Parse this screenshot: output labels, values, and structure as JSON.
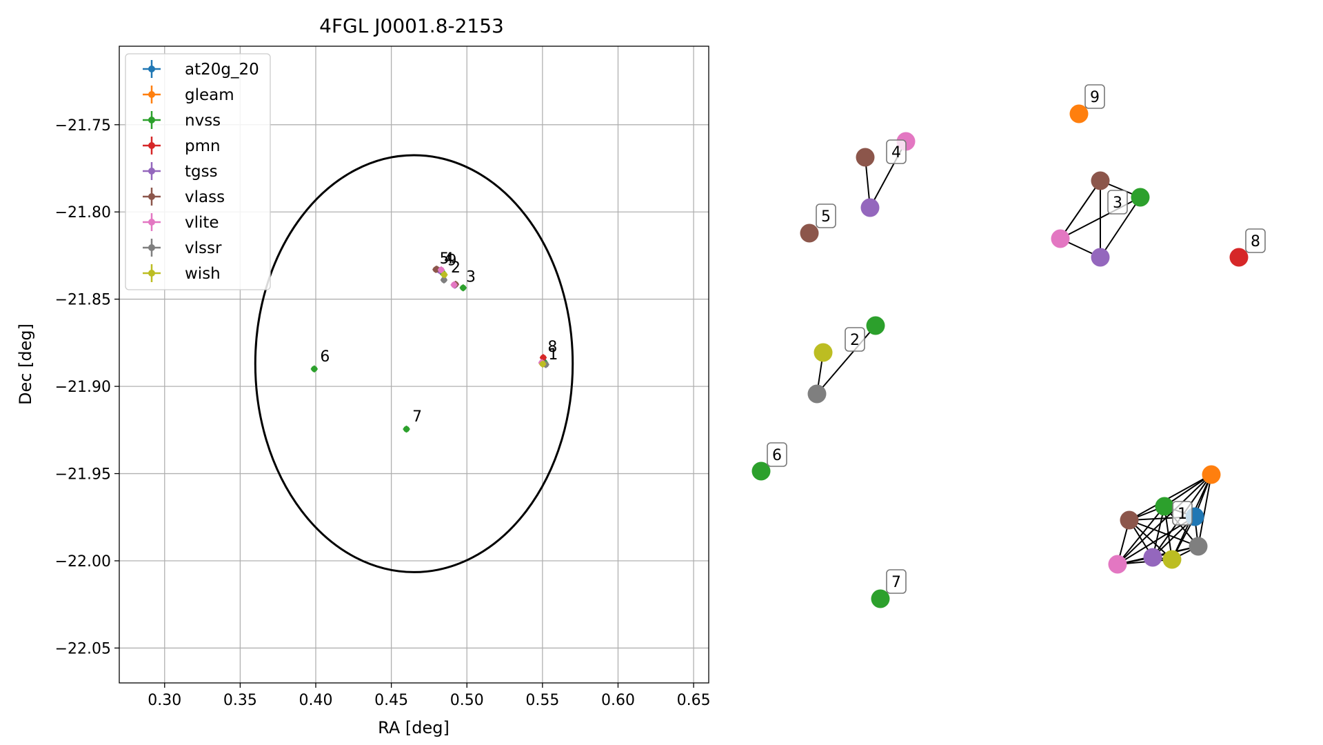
{
  "chart_data": [
    {
      "type": "scatter",
      "title": "4FGL J0001.8-2153",
      "xlabel": "RA [deg]",
      "ylabel": "Dec [deg]",
      "xlim": [
        0.27,
        0.66
      ],
      "ylim": [
        -22.07,
        -21.705
      ],
      "x_ticks": [
        0.3,
        0.35,
        0.4,
        0.45,
        0.5,
        0.55,
        0.6,
        0.65
      ],
      "x_tick_labels": [
        "0.30",
        "0.35",
        "0.40",
        "0.45",
        "0.50",
        "0.55",
        "0.60",
        "0.65"
      ],
      "y_ticks": [
        -21.75,
        -21.8,
        -21.85,
        -21.9,
        -21.95,
        -22.0,
        -22.05
      ],
      "y_tick_labels": [
        "−21.75",
        "−21.80",
        "−21.85",
        "−21.90",
        "−21.95",
        "−22.00",
        "−22.05"
      ],
      "grid": true,
      "legend_position": "upper-left",
      "series": [
        {
          "name": "at20g_20",
          "color": "#1f77b4",
          "points": [
            [
              0.5508,
              -21.8857
            ]
          ]
        },
        {
          "name": "gleam",
          "color": "#ff7f0e",
          "points": [
            [
              0.55,
              -21.887
            ]
          ]
        },
        {
          "name": "nvss",
          "color": "#2ca02c",
          "points": [
            [
              0.4975,
              -21.8435
            ],
            [
              0.5515,
              -21.8865
            ],
            [
              0.484,
              -21.835
            ],
            [
              0.399,
              -21.89
            ],
            [
              0.46,
              -21.9245
            ]
          ]
        },
        {
          "name": "pmn",
          "color": "#d62728",
          "points": [
            [
              0.5505,
              -21.8835
            ]
          ]
        },
        {
          "name": "tgss",
          "color": "#9467bd",
          "points": [
            [
              0.55,
              -21.8868
            ],
            [
              0.492,
              -21.842
            ],
            [
              0.482,
              -21.8336
            ]
          ]
        },
        {
          "name": "vlass",
          "color": "#8c564b",
          "points": [
            [
              0.5498,
              -21.8866
            ],
            [
              0.4925,
              -21.8415
            ],
            [
              0.4795,
              -21.833
            ],
            [
              0.48,
              -21.8328
            ]
          ]
        },
        {
          "name": "vlite",
          "color": "#e377c2",
          "points": [
            [
              0.5496,
              -21.8864
            ],
            [
              0.4915,
              -21.8418
            ],
            [
              0.483,
              -21.8332
            ]
          ]
        },
        {
          "name": "vlssr",
          "color": "#7f7f7f",
          "points": [
            [
              0.5522,
              -21.8875
            ],
            [
              0.4848,
              -21.839
            ]
          ]
        },
        {
          "name": "wish",
          "color": "#bcbd22",
          "points": [
            [
              0.5502,
              -21.8872
            ],
            [
              0.485,
              -21.836
            ]
          ]
        }
      ],
      "annotations": [
        {
          "text": "1",
          "x": 0.553,
          "y": -21.887
        },
        {
          "text": "8",
          "x": 0.5525,
          "y": -21.8825
        },
        {
          "text": "2",
          "x": 0.4885,
          "y": -21.837
        },
        {
          "text": "3",
          "x": 0.4985,
          "y": -21.8425
        },
        {
          "text": "5",
          "x": 0.481,
          "y": -21.832
        },
        {
          "text": "4",
          "x": 0.484,
          "y": -21.832
        },
        {
          "text": "9",
          "x": 0.486,
          "y": -21.833
        },
        {
          "text": "6",
          "x": 0.402,
          "y": -21.888
        },
        {
          "text": "7",
          "x": 0.463,
          "y": -21.9225
        }
      ],
      "ellipse": {
        "center": [
          0.465,
          -21.887
        ],
        "semi_axis_ra": 0.105,
        "semi_axis_dec": 0.1195,
        "color": "#000000"
      }
    },
    {
      "type": "network",
      "nodes": [
        {
          "id": "n1",
          "color": "#1f77b4",
          "cluster": "1"
        },
        {
          "id": "n2",
          "color": "#ff7f0e",
          "cluster": "1"
        },
        {
          "id": "n3",
          "color": "#2ca02c",
          "cluster": "1"
        },
        {
          "id": "n4",
          "color": "#8c564b",
          "cluster": "1"
        },
        {
          "id": "n5",
          "color": "#9467bd",
          "cluster": "1"
        },
        {
          "id": "n6",
          "color": "#bcbd22",
          "cluster": "1"
        },
        {
          "id": "n7",
          "color": "#7f7f7f",
          "cluster": "1"
        },
        {
          "id": "n8",
          "color": "#e377c2",
          "cluster": "1"
        },
        {
          "id": "n9",
          "color": "#2ca02c",
          "cluster": "2"
        },
        {
          "id": "n10",
          "color": "#bcbd22",
          "cluster": "2"
        },
        {
          "id": "n11",
          "color": "#7f7f7f",
          "cluster": "2"
        },
        {
          "id": "n12",
          "color": "#8c564b",
          "cluster": "3"
        },
        {
          "id": "n13",
          "color": "#2ca02c",
          "cluster": "3"
        },
        {
          "id": "n14",
          "color": "#e377c2",
          "cluster": "3"
        },
        {
          "id": "n15",
          "color": "#9467bd",
          "cluster": "3"
        },
        {
          "id": "n16",
          "color": "#e377c2",
          "cluster": "4"
        },
        {
          "id": "n17",
          "color": "#8c564b",
          "cluster": "4"
        },
        {
          "id": "n18",
          "color": "#9467bd",
          "cluster": "4"
        },
        {
          "id": "n19",
          "color": "#8c564b",
          "cluster": "5"
        },
        {
          "id": "n20",
          "color": "#2ca02c",
          "cluster": "6"
        },
        {
          "id": "n21",
          "color": "#2ca02c",
          "cluster": "7"
        },
        {
          "id": "n22",
          "color": "#d62728",
          "cluster": "8"
        },
        {
          "id": "n23",
          "color": "#ff7f0e",
          "cluster": "9"
        }
      ],
      "edges": [
        [
          "n2",
          "n1"
        ],
        [
          "n2",
          "n3"
        ],
        [
          "n2",
          "n4"
        ],
        [
          "n2",
          "n5"
        ],
        [
          "n2",
          "n6"
        ],
        [
          "n2",
          "n7"
        ],
        [
          "n2",
          "n8"
        ],
        [
          "n3",
          "n1"
        ],
        [
          "n3",
          "n4"
        ],
        [
          "n3",
          "n5"
        ],
        [
          "n3",
          "n6"
        ],
        [
          "n3",
          "n7"
        ],
        [
          "n3",
          "n8"
        ],
        [
          "n4",
          "n1"
        ],
        [
          "n4",
          "n5"
        ],
        [
          "n4",
          "n6"
        ],
        [
          "n4",
          "n7"
        ],
        [
          "n4",
          "n8"
        ],
        [
          "n1",
          "n5"
        ],
        [
          "n1",
          "n6"
        ],
        [
          "n1",
          "n7"
        ],
        [
          "n1",
          "n8"
        ],
        [
          "n5",
          "n6"
        ],
        [
          "n5",
          "n7"
        ],
        [
          "n5",
          "n8"
        ],
        [
          "n6",
          "n7"
        ],
        [
          "n6",
          "n8"
        ],
        [
          "n7",
          "n8"
        ],
        [
          "n9",
          "n11"
        ],
        [
          "n10",
          "n11"
        ],
        [
          "n12",
          "n13"
        ],
        [
          "n12",
          "n14"
        ],
        [
          "n12",
          "n15"
        ],
        [
          "n13",
          "n14"
        ],
        [
          "n13",
          "n15"
        ],
        [
          "n14",
          "n15"
        ],
        [
          "n16",
          "n18"
        ],
        [
          "n17",
          "n18"
        ]
      ],
      "cluster_labels": [
        "1",
        "2",
        "3",
        "4",
        "5",
        "6",
        "7",
        "8",
        "9"
      ]
    }
  ]
}
